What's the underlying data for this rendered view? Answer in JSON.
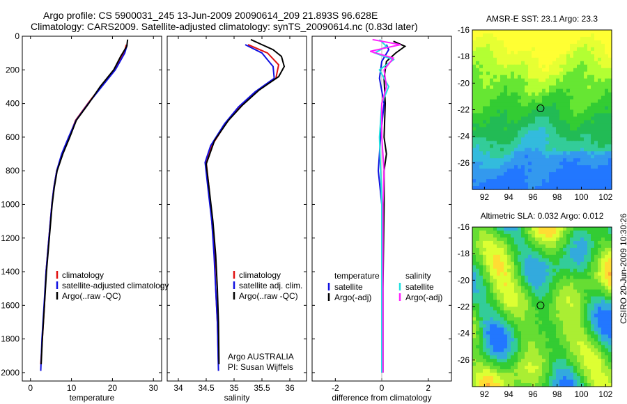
{
  "header": {
    "line1": "Argo profile: CS 5900031_245 13-Jun-2009 20090614_209 21.893S 96.628E",
    "line2": "Climatology: CARS2009. Satellite-adjusted climatology: synTS_20090614.nc (0.83d later)"
  },
  "colors": {
    "climatology": "#e01010",
    "satellite": "#1010e0",
    "argo": "#000000",
    "sal_satellite": "#20e0e0",
    "sal_argo": "#ff20ff"
  },
  "chart_data": [
    {
      "type": "line",
      "id": "temperature",
      "xlabel": "temperature",
      "xlim": [
        -2,
        32
      ],
      "ylim": [
        2050,
        0
      ],
      "y_reversed": true,
      "xticks": [
        0,
        10,
        20,
        30
      ],
      "yticks": [
        0,
        200,
        400,
        600,
        800,
        1000,
        1200,
        1400,
        1600,
        1800,
        2000
      ],
      "legend": [
        "climatology",
        "satellite-adjusted climatology",
        "Argo(..raw -QC)"
      ],
      "legend_placement": "lower-right",
      "series": [
        {
          "name": "climatology",
          "color": "red",
          "points": [
            [
              23.4,
              50
            ],
            [
              22.8,
              100
            ],
            [
              20.5,
              200
            ],
            [
              17.2,
              300
            ],
            [
              14.0,
              400
            ],
            [
              11.0,
              500
            ],
            [
              9.4,
              600
            ],
            [
              7.7,
              700
            ],
            [
              6.4,
              800
            ],
            [
              5.7,
              900
            ],
            [
              5.2,
              1000
            ],
            [
              4.5,
              1200
            ],
            [
              3.8,
              1400
            ],
            [
              3.4,
              1600
            ],
            [
              2.9,
              1800
            ],
            [
              2.5,
              1950
            ]
          ]
        },
        {
          "name": "satellite-adjusted climatology",
          "color": "blue",
          "points": [
            [
              23.6,
              50
            ],
            [
              23.0,
              100
            ],
            [
              20.7,
              200
            ],
            [
              17.4,
              300
            ],
            [
              14.1,
              400
            ],
            [
              11.1,
              500
            ],
            [
              9.3,
              600
            ],
            [
              7.6,
              700
            ],
            [
              6.4,
              800
            ],
            [
              5.7,
              900
            ],
            [
              5.2,
              1000
            ],
            [
              4.5,
              1200
            ],
            [
              3.8,
              1400
            ],
            [
              3.3,
              1600
            ],
            [
              2.8,
              1800
            ],
            [
              2.5,
              1990
            ]
          ]
        },
        {
          "name": "Argo(..raw -QC)",
          "color": "black",
          "points": [
            [
              23.7,
              20
            ],
            [
              23.5,
              60
            ],
            [
              22.0,
              120
            ],
            [
              20.3,
              200
            ],
            [
              17.0,
              300
            ],
            [
              14.2,
              400
            ],
            [
              11.2,
              500
            ],
            [
              9.6,
              600
            ],
            [
              7.9,
              700
            ],
            [
              6.5,
              800
            ],
            [
              5.8,
              900
            ],
            [
              5.3,
              1000
            ],
            [
              4.6,
              1200
            ],
            [
              3.9,
              1400
            ],
            [
              3.4,
              1600
            ],
            [
              2.9,
              1800
            ],
            [
              2.6,
              1950
            ]
          ]
        }
      ]
    },
    {
      "type": "line",
      "id": "salinity",
      "xlabel": "salinity",
      "xlim": [
        33.8,
        36.3
      ],
      "ylim": [
        2050,
        0
      ],
      "y_reversed": true,
      "xticks": [
        34,
        34.5,
        35,
        35.5,
        36
      ],
      "legend": [
        "climatology",
        "satellite adj. clim.",
        "Argo(..raw -QC)"
      ],
      "legend_placement": "lower-right",
      "annotations": [
        "Argo AUSTRALIA",
        "PI: Susan Wijffels"
      ],
      "series": [
        {
          "name": "climatology",
          "color": "red",
          "points": [
            [
              35.25,
              50
            ],
            [
              35.6,
              100
            ],
            [
              35.8,
              170
            ],
            [
              35.75,
              250
            ],
            [
              35.4,
              330
            ],
            [
              35.1,
              420
            ],
            [
              34.85,
              520
            ],
            [
              34.6,
              650
            ],
            [
              34.5,
              750
            ],
            [
              34.55,
              900
            ],
            [
              34.6,
              1100
            ],
            [
              34.65,
              1300
            ],
            [
              34.67,
              1500
            ],
            [
              34.7,
              1700
            ],
            [
              34.72,
              1950
            ]
          ]
        },
        {
          "name": "satellite adj. clim.",
          "color": "blue",
          "points": [
            [
              35.2,
              50
            ],
            [
              35.5,
              100
            ],
            [
              35.7,
              180
            ],
            [
              35.72,
              250
            ],
            [
              35.38,
              330
            ],
            [
              35.08,
              420
            ],
            [
              34.83,
              520
            ],
            [
              34.58,
              650
            ],
            [
              34.48,
              750
            ],
            [
              34.53,
              900
            ],
            [
              34.6,
              1100
            ],
            [
              34.64,
              1300
            ],
            [
              34.67,
              1500
            ],
            [
              34.7,
              1700
            ],
            [
              34.72,
              1990
            ]
          ]
        },
        {
          "name": "Argo(..raw -QC)",
          "color": "black",
          "points": [
            [
              35.3,
              20
            ],
            [
              35.5,
              50
            ],
            [
              35.7,
              80
            ],
            [
              35.85,
              120
            ],
            [
              35.9,
              180
            ],
            [
              35.8,
              240
            ],
            [
              35.45,
              320
            ],
            [
              35.15,
              410
            ],
            [
              34.9,
              500
            ],
            [
              34.65,
              620
            ],
            [
              34.5,
              760
            ],
            [
              34.55,
              900
            ],
            [
              34.62,
              1100
            ],
            [
              34.67,
              1300
            ],
            [
              34.7,
              1500
            ],
            [
              34.72,
              1700
            ],
            [
              34.73,
              1950
            ]
          ]
        }
      ]
    },
    {
      "type": "line",
      "id": "difference",
      "xlabel": "difference from climatology",
      "xlim": [
        -3,
        3
      ],
      "ylim": [
        2050,
        0
      ],
      "y_reversed": true,
      "xticks": [
        -2,
        0,
        2
      ],
      "legend_temperature": {
        "title": "temperature",
        "items": [
          "satellite",
          "Argo(-adj)"
        ]
      },
      "legend_salinity": {
        "title": "salinity",
        "items": [
          "satellite",
          "Argo(-adj)"
        ]
      },
      "series": [
        {
          "name": "temperature satellite",
          "color": "blue",
          "points": [
            [
              0.2,
              50
            ],
            [
              0.3,
              80
            ],
            [
              0.0,
              150
            ],
            [
              -0.1,
              250
            ],
            [
              0.1,
              400
            ],
            [
              -0.05,
              600
            ],
            [
              -0.15,
              800
            ],
            [
              0.0,
              1000
            ],
            [
              0.0,
              1500
            ],
            [
              0.0,
              2000
            ]
          ]
        },
        {
          "name": "temperature Argo(-adj)",
          "color": "black",
          "points": [
            [
              0.5,
              30
            ],
            [
              1.0,
              60
            ],
            [
              0.6,
              100
            ],
            [
              0.2,
              150
            ],
            [
              0.1,
              250
            ],
            [
              0.15,
              400
            ],
            [
              0.1,
              600
            ],
            [
              0.2,
              700
            ],
            [
              0.1,
              800
            ],
            [
              0.1,
              1000
            ],
            [
              0.05,
              1500
            ],
            [
              0.05,
              2000
            ]
          ]
        },
        {
          "name": "salinity satellite",
          "color": "cyan",
          "points": [
            [
              -0.1,
              20
            ],
            [
              0.2,
              60
            ],
            [
              -0.3,
              100
            ],
            [
              0.5,
              140
            ],
            [
              -0.1,
              200
            ],
            [
              0.3,
              300
            ],
            [
              0.0,
              400
            ],
            [
              -0.1,
              600
            ],
            [
              0.0,
              1000
            ],
            [
              0.0,
              2000
            ]
          ]
        },
        {
          "name": "salinity Argo(-adj)",
          "color": "magenta",
          "points": [
            [
              -0.4,
              20
            ],
            [
              0.8,
              50
            ],
            [
              -0.5,
              90
            ],
            [
              0.5,
              130
            ],
            [
              0.1,
              200
            ],
            [
              0.2,
              300
            ],
            [
              0.0,
              400
            ],
            [
              0.0,
              600
            ],
            [
              0.1,
              800
            ],
            [
              0.05,
              1000
            ],
            [
              0.05,
              1500
            ],
            [
              0.05,
              2000
            ]
          ]
        }
      ]
    },
    {
      "type": "heatmap",
      "id": "sst-map",
      "title": "AMSR-E SST: 23.1 Argo: 23.3",
      "xlim": [
        91,
        102.5
      ],
      "ylim": [
        -28,
        -16
      ],
      "xticks": [
        92,
        94,
        96,
        98,
        100,
        102
      ],
      "yticks": [
        -16,
        -18,
        -20,
        -22,
        -24,
        -26
      ],
      "marker": {
        "lon": 96.628,
        "lat": -21.893
      }
    },
    {
      "type": "heatmap",
      "id": "sla-map",
      "title": "Altimetric SLA: 0.032 Argo: 0.012",
      "xlim": [
        91,
        102.5
      ],
      "ylim": [
        -28,
        -16
      ],
      "xticks": [
        92,
        94,
        96,
        98,
        100,
        102
      ],
      "yticks": [
        -16,
        -18,
        -20,
        -22,
        -24,
        -26
      ],
      "marker": {
        "lon": 96.628,
        "lat": -21.893
      }
    }
  ],
  "footer": {
    "credit": "CSIRO 20-Jun-2009 10:30:26"
  }
}
